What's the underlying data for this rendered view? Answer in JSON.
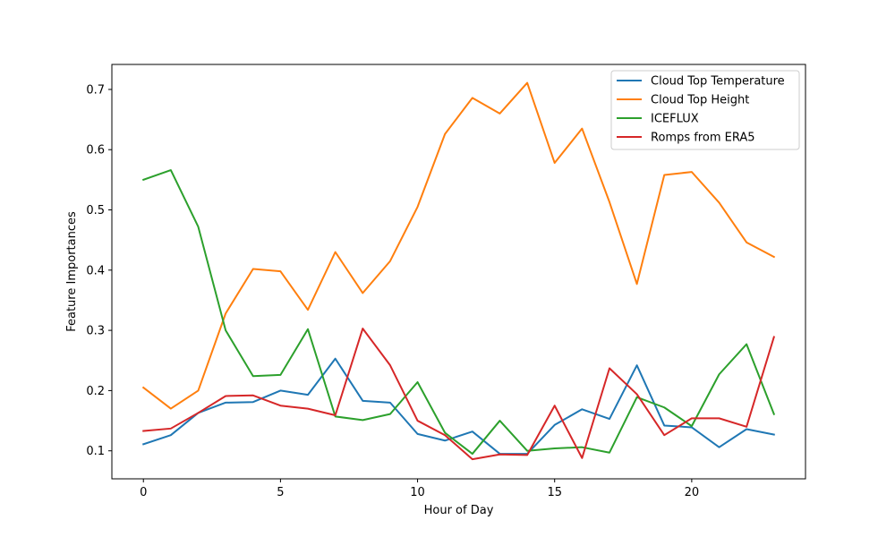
{
  "chart_data": {
    "type": "line",
    "title": "",
    "xlabel": "Hour of Day",
    "ylabel": "Feature Importances",
    "xlim": [
      -1.15,
      24.15
    ],
    "ylim": [
      0.0535,
      0.7415
    ],
    "xticks": [
      0,
      5,
      10,
      15,
      20
    ],
    "yticks": [
      0.1,
      0.2,
      0.3,
      0.4,
      0.5,
      0.6,
      0.7
    ],
    "x": [
      0,
      1,
      2,
      3,
      4,
      5,
      6,
      7,
      8,
      9,
      10,
      11,
      12,
      13,
      14,
      15,
      16,
      17,
      18,
      19,
      20,
      21,
      22,
      23
    ],
    "grid": false,
    "legend_position": "top-right",
    "series": [
      {
        "name": "Cloud Top Temperature",
        "color": "#1f77b4",
        "values": [
          0.111,
          0.126,
          0.163,
          0.18,
          0.181,
          0.2,
          0.193,
          0.253,
          0.183,
          0.18,
          0.128,
          0.117,
          0.132,
          0.095,
          0.095,
          0.143,
          0.169,
          0.153,
          0.242,
          0.142,
          0.139,
          0.106,
          0.136,
          0.127
        ]
      },
      {
        "name": "Cloud Top Height",
        "color": "#ff7f0e",
        "values": [
          0.205,
          0.17,
          0.2,
          0.328,
          0.402,
          0.398,
          0.334,
          0.43,
          0.362,
          0.415,
          0.505,
          0.626,
          0.686,
          0.66,
          0.711,
          0.578,
          0.635,
          0.513,
          0.377,
          0.558,
          0.563,
          0.512,
          0.446,
          0.422
        ]
      },
      {
        "name": "ICEFLUX",
        "color": "#2ca02c",
        "values": [
          0.55,
          0.566,
          0.472,
          0.3,
          0.224,
          0.226,
          0.302,
          0.157,
          0.151,
          0.161,
          0.214,
          0.13,
          0.095,
          0.15,
          0.1,
          0.104,
          0.106,
          0.097,
          0.189,
          0.172,
          0.141,
          0.227,
          0.277,
          0.161
        ]
      },
      {
        "name": "Romps from ERA5",
        "color": "#d62728",
        "values": [
          0.133,
          0.137,
          0.163,
          0.191,
          0.192,
          0.175,
          0.17,
          0.159,
          0.303,
          0.242,
          0.15,
          0.126,
          0.086,
          0.094,
          0.093,
          0.175,
          0.088,
          0.237,
          0.194,
          0.126,
          0.154,
          0.154,
          0.14,
          0.289
        ]
      }
    ]
  }
}
